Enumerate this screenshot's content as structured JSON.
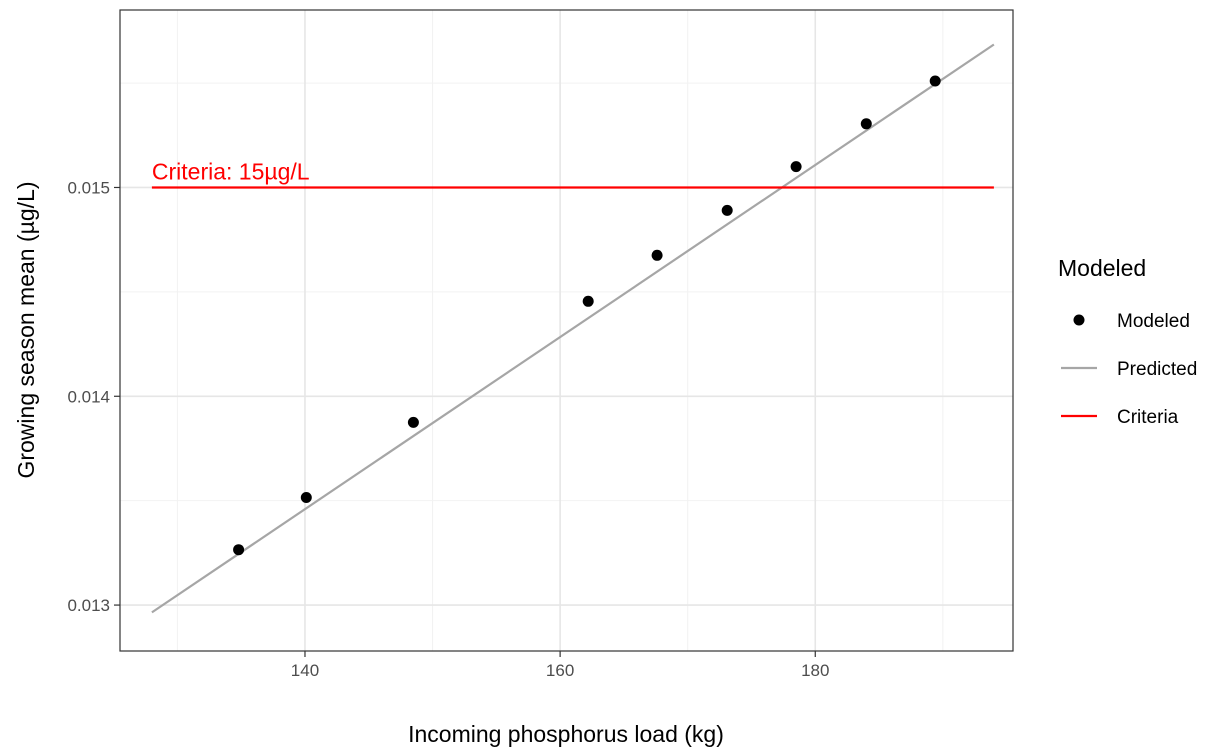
{
  "chart_data": {
    "type": "scatter",
    "xlabel": "Incoming phosphorus load (kg)",
    "ylabel": "Growing season mean (µg/L)",
    "xlim": [
      125.5,
      195.5
    ],
    "ylim": [
      0.01278,
      0.01585
    ],
    "x_ticks": [
      140,
      160,
      180
    ],
    "y_ticks": [
      0.013,
      0.014,
      0.015
    ],
    "x_tick_labels": [
      "140",
      "160",
      "180"
    ],
    "y_tick_labels": [
      "0.013",
      "0.014",
      "0.015"
    ],
    "grid": true,
    "legend": {
      "title": "Modeled",
      "position": "right",
      "entries": [
        {
          "label": "Modeled",
          "kind": "point",
          "color": "#000000"
        },
        {
          "label": "Predicted",
          "kind": "line",
          "color": "#a6a6a6"
        },
        {
          "label": "Criteria",
          "kind": "line",
          "color": "#ff0000"
        }
      ]
    },
    "series": [
      {
        "name": "Modeled",
        "kind": "point",
        "color": "#000000",
        "x": [
          134.8,
          140.1,
          148.5,
          162.2,
          167.6,
          173.1,
          178.5,
          184.0,
          189.4
        ],
        "y": [
          0.013265,
          0.013515,
          0.013875,
          0.014455,
          0.014675,
          0.01489,
          0.0151,
          0.015305,
          0.01551
        ]
      },
      {
        "name": "Predicted",
        "kind": "line",
        "color": "#a6a6a6",
        "x": [
          128.0,
          194.0
        ],
        "y": [
          0.012965,
          0.015685
        ]
      },
      {
        "name": "Criteria",
        "kind": "line",
        "color": "#ff0000",
        "x": [
          128.0,
          194.0
        ],
        "y": [
          0.015,
          0.015
        ]
      }
    ],
    "annotations": [
      {
        "text": "Criteria: 15µg/L",
        "x": 128.0,
        "y": 0.015,
        "color": "#ff0000"
      }
    ]
  }
}
